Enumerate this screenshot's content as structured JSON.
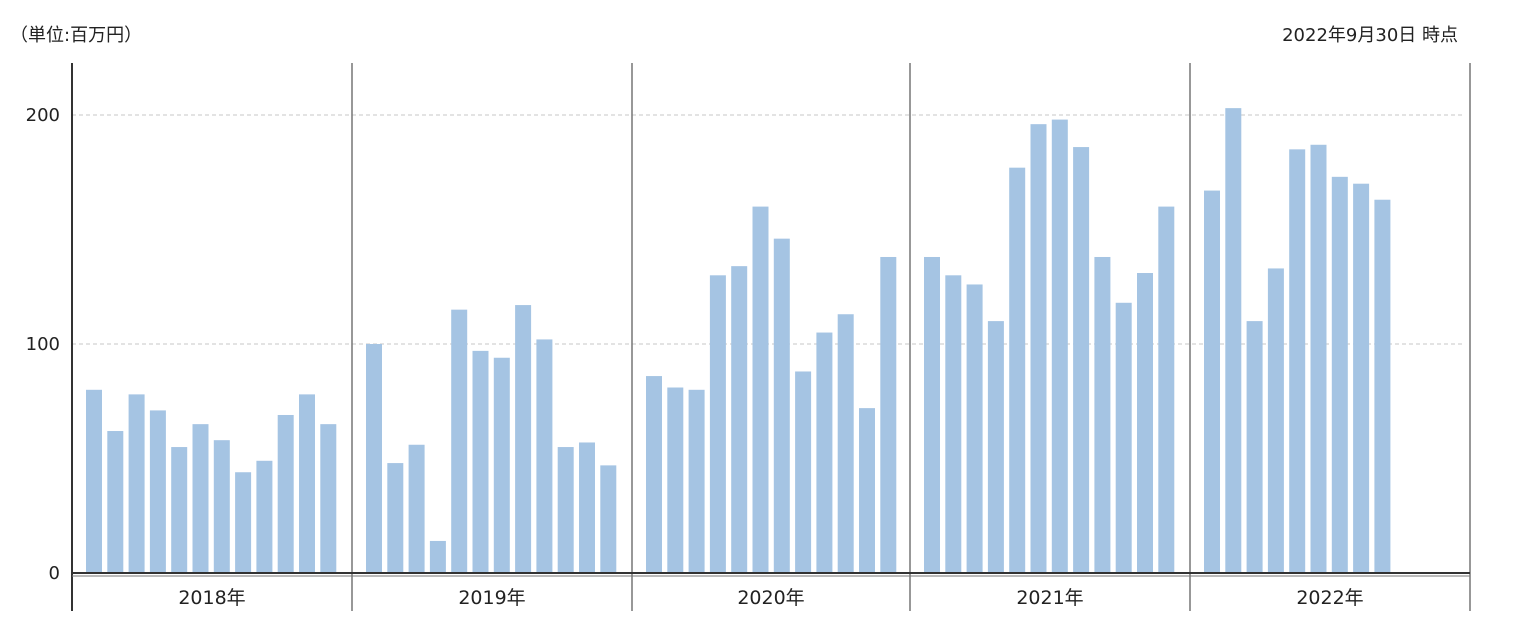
{
  "header": {
    "unit_label": "（単位:百万円）",
    "as_of_label": "2022年9月30日 時点"
  },
  "colors": {
    "bar": "#a5c4e3",
    "grid": "#c7c7c7",
    "axis": "#333333",
    "divider": "#777777"
  },
  "chart_data": {
    "type": "bar",
    "title": "",
    "xlabel": "",
    "ylabel": "",
    "ylim": [
      0,
      220
    ],
    "yticks": [
      0,
      100,
      200
    ],
    "grid": true,
    "groups": [
      {
        "label": "2018年",
        "values": [
          80,
          62,
          78,
          71,
          55,
          65,
          58,
          44,
          49,
          69,
          78,
          65
        ]
      },
      {
        "label": "2019年",
        "values": [
          100,
          48,
          56,
          14,
          115,
          97,
          94,
          117,
          102,
          55,
          57,
          47
        ]
      },
      {
        "label": "2020年",
        "values": [
          86,
          81,
          80,
          130,
          134,
          160,
          146,
          88,
          105,
          113,
          72,
          138
        ]
      },
      {
        "label": "2021年",
        "values": [
          138,
          130,
          126,
          110,
          177,
          196,
          198,
          186,
          138,
          118,
          131,
          160
        ]
      },
      {
        "label": "2022年",
        "values": [
          167,
          203,
          110,
          133,
          185,
          187,
          173,
          170,
          163
        ]
      }
    ]
  }
}
